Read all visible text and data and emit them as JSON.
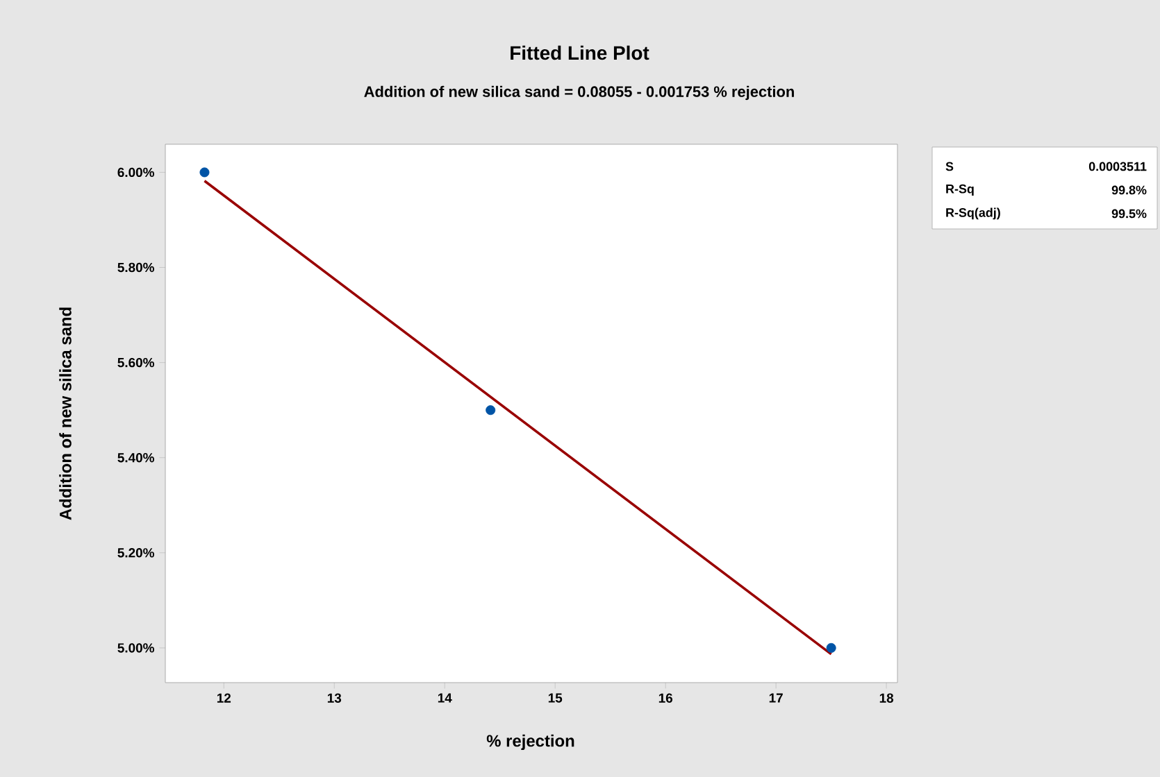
{
  "chart_data": {
    "type": "scatter",
    "title": "Fitted Line Plot",
    "subtitle": "Addition of new silica sand = 0.08055 - 0.001753 % rejection",
    "xlabel": "% rejection",
    "ylabel": "Addition of new silica sand",
    "series": [
      {
        "color": "#0054a6",
        "marker": "circle",
        "x": [
          11.825,
          14.415,
          17.5
        ],
        "values": [
          6.0,
          5.5,
          5.0
        ]
      },
      {
        "type": "line",
        "color": "#990000",
        "marker": "none",
        "x": [
          11.825,
          17.5
        ],
        "values": [
          5.982,
          4.987
        ]
      }
    ],
    "xlim": [
      11.47,
      18.1
    ],
    "ylim": [
      4.927,
      6.059
    ],
    "xticks": [
      12,
      13,
      14,
      15,
      16,
      17,
      18
    ],
    "yticks": [
      {
        "value": 5.0,
        "label": "5.00%"
      },
      {
        "value": 5.2,
        "label": "5.20%"
      },
      {
        "value": 5.4,
        "label": "5.40%"
      },
      {
        "value": 5.6,
        "label": "5.60%"
      },
      {
        "value": 5.8,
        "label": "5.80%"
      },
      {
        "value": 6.0,
        "label": "6.00%"
      }
    ],
    "grid": false,
    "annotations": [
      "S",
      "0.0003511",
      "R-Sq",
      "99.8%",
      "R-Sq(adj)",
      "99.5%"
    ]
  }
}
